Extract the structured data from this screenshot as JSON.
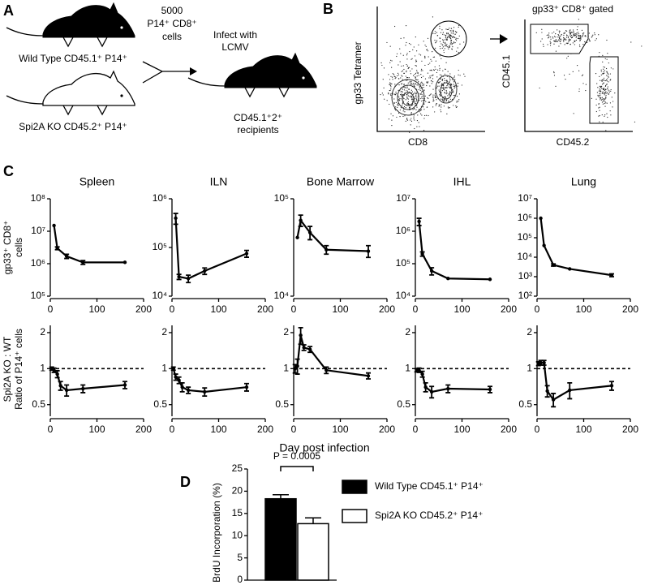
{
  "panel_a": {
    "label": "A",
    "mouse_1": "Wild Type CD45.1⁺ P14⁺",
    "mouse_2": "Spi2A KO CD45.2⁺ P14⁺",
    "transfer": [
      "5000",
      "P14⁺ CD8⁺",
      "cells"
    ],
    "infect": [
      "Infect with",
      "LCMV"
    ],
    "recipients": [
      "CD45.1⁺2⁺",
      "recipients"
    ]
  },
  "panel_b": {
    "label": "B",
    "plot_1_y": "gp33 Tetramer",
    "plot_1_x": "CD8",
    "plot_2_title": "gp33⁺ CD8⁺ gated",
    "plot_2_y": "CD45.1",
    "plot_2_x": "CD45.2"
  },
  "panel_c": {
    "label": "C",
    "y_label_top": [
      "gp33⁺ CD8⁺",
      "cells"
    ],
    "y_label_bottom": [
      "Spi2A KO : WT",
      "Ratio of P14⁺ cells"
    ],
    "x_label": "Day post infection"
  },
  "panel_d": {
    "label": "D"
  },
  "chart_data": [
    {
      "type": "line",
      "title": "Spleen",
      "log_y": true,
      "x": [
        8,
        15,
        35,
        70,
        160
      ],
      "values": [
        15000000,
        3000000,
        1700000,
        1100000,
        1100000
      ],
      "errors": [
        0,
        300000,
        250000,
        150000,
        0
      ],
      "xlim": [
        0,
        200
      ],
      "xticks": [
        0,
        100,
        200
      ],
      "ylim": [
        100000,
        100000000
      ],
      "yticks": [
        {
          "value": 100000,
          "label": "10⁵"
        },
        {
          "value": 1000000,
          "label": "10⁶"
        },
        {
          "value": 10000000,
          "label": "10⁷"
        },
        {
          "value": 100000000,
          "label": "10⁸"
        }
      ]
    },
    {
      "type": "line",
      "title": "ILN",
      "log_y": true,
      "x": [
        8,
        15,
        35,
        70,
        160
      ],
      "values": [
        400000,
        25000,
        23000,
        33000,
        75000
      ],
      "errors": [
        100000,
        3000,
        4000,
        5000,
        12000
      ],
      "xlim": [
        0,
        200
      ],
      "xticks": [
        0,
        100,
        200
      ],
      "ylim": [
        10000,
        1000000
      ],
      "yticks": [
        {
          "value": 10000,
          "label": "10⁴"
        },
        {
          "value": 100000,
          "label": "10⁵"
        },
        {
          "value": 1000000,
          "label": "10⁶"
        }
      ]
    },
    {
      "type": "line",
      "title": "Bone Marrow",
      "log_y": true,
      "x": [
        8,
        15,
        35,
        70,
        160
      ],
      "values": [
        40000,
        60000,
        45000,
        30000,
        29000
      ],
      "errors": [
        0,
        8000,
        7000,
        3000,
        4000
      ],
      "xlim": [
        0,
        200
      ],
      "xticks": [
        0,
        100,
        200
      ],
      "ylim": [
        10000,
        100000
      ],
      "yticks": [
        {
          "value": 10000,
          "label": "10⁴"
        },
        {
          "value": 100000,
          "label": "10⁵"
        }
      ]
    },
    {
      "type": "line",
      "title": "IHL",
      "log_y": true,
      "x": [
        8,
        15,
        35,
        70,
        160
      ],
      "values": [
        2000000,
        200000,
        60000,
        35000,
        33000
      ],
      "errors": [
        500000,
        30000,
        15000,
        0,
        0
      ],
      "xlim": [
        0,
        200
      ],
      "xticks": [
        0,
        100,
        200
      ],
      "ylim": [
        10000,
        10000000
      ],
      "yticks": [
        {
          "value": 10000,
          "label": "10⁴"
        },
        {
          "value": 100000,
          "label": "10⁵"
        },
        {
          "value": 1000000,
          "label": "10⁶"
        },
        {
          "value": 10000000,
          "label": "10⁷"
        }
      ]
    },
    {
      "type": "line",
      "title": "Lung",
      "log_y": true,
      "x": [
        8,
        15,
        35,
        70,
        160
      ],
      "values": [
        1000000,
        40000,
        4000,
        2500,
        1200
      ],
      "errors": [
        0,
        0,
        500,
        0,
        200
      ],
      "xlim": [
        0,
        200
      ],
      "xticks": [
        0,
        100,
        200
      ],
      "ylim": [
        100,
        10000000
      ],
      "yticks": [
        {
          "value": 100,
          "label": "10²"
        },
        {
          "value": 1000,
          "label": "10³"
        },
        {
          "value": 10000,
          "label": "10⁴"
        },
        {
          "value": 100000,
          "label": "10⁵"
        },
        {
          "value": 1000000,
          "label": "10⁶"
        },
        {
          "value": 10000000,
          "label": "10⁷"
        }
      ]
    },
    {
      "type": "line",
      "log_y": true,
      "ref_line": 1,
      "x": [
        3,
        8,
        15,
        22,
        35,
        70,
        160
      ],
      "values": [
        1.0,
        0.97,
        0.9,
        0.72,
        0.66,
        0.68,
        0.73
      ],
      "errors": [
        0.03,
        0.04,
        0.06,
        0.06,
        0.07,
        0.05,
        0.05
      ],
      "xlim": [
        0,
        200
      ],
      "xticks": [
        0,
        100,
        200
      ],
      "ylim": [
        0.4,
        2.3
      ],
      "yticks": [
        0.5,
        1,
        2
      ]
    },
    {
      "type": "line",
      "log_y": true,
      "ref_line": 1,
      "x": [
        3,
        8,
        15,
        22,
        35,
        70,
        160
      ],
      "values": [
        1.0,
        0.85,
        0.8,
        0.7,
        0.66,
        0.64,
        0.7
      ],
      "errors": [
        0.03,
        0.05,
        0.05,
        0.06,
        0.04,
        0.05,
        0.05
      ],
      "xlim": [
        0,
        200
      ],
      "xticks": [
        0,
        100,
        200
      ],
      "ylim": [
        0.4,
        2.3
      ],
      "yticks": [
        0.5,
        1,
        2
      ]
    },
    {
      "type": "line",
      "log_y": true,
      "ref_line": 1,
      "x": [
        3,
        8,
        15,
        22,
        35,
        70,
        160
      ],
      "values": [
        1.0,
        1.05,
        1.9,
        1.5,
        1.45,
        0.97,
        0.87
      ],
      "errors": [
        0.08,
        0.15,
        0.3,
        0.08,
        0.08,
        0.06,
        0.05
      ],
      "xlim": [
        0,
        200
      ],
      "xticks": [
        0,
        100,
        200
      ],
      "ylim": [
        0.4,
        2.3
      ],
      "yticks": [
        0.5,
        1,
        2
      ]
    },
    {
      "type": "line",
      "log_y": true,
      "ref_line": 1,
      "x": [
        3,
        8,
        15,
        22,
        35,
        70,
        160
      ],
      "values": [
        0.97,
        0.97,
        0.9,
        0.7,
        0.64,
        0.68,
        0.67
      ],
      "errors": [
        0.03,
        0.04,
        0.05,
        0.06,
        0.07,
        0.05,
        0.04
      ],
      "xlim": [
        0,
        200
      ],
      "xticks": [
        0,
        100,
        200
      ],
      "ylim": [
        0.4,
        2.3
      ],
      "yticks": [
        0.5,
        1,
        2
      ]
    },
    {
      "type": "line",
      "log_y": true,
      "ref_line": 1,
      "x": [
        3,
        8,
        15,
        22,
        35,
        70,
        160
      ],
      "values": [
        1.1,
        1.12,
        1.12,
        0.65,
        0.55,
        0.66,
        0.72
      ],
      "errors": [
        0.04,
        0.05,
        0.05,
        0.07,
        0.07,
        0.1,
        0.06
      ],
      "xlim": [
        0,
        200
      ],
      "xticks": [
        0,
        100,
        200
      ],
      "ylim": [
        0.4,
        2.3
      ],
      "yticks": [
        0.5,
        1,
        2
      ]
    },
    {
      "type": "bar",
      "ylabel": "BrdU Incorporation (%)",
      "annotation": "P = 0.0005",
      "series": [
        {
          "name": "Wild Type CD45.1⁺ P14⁺",
          "color": "#000000",
          "values": [
            18.3
          ],
          "errors": [
            0.9
          ]
        },
        {
          "name": "Spi2A KO CD45.2⁺ P14⁺",
          "color": "#ffffff",
          "values": [
            12.7
          ],
          "errors": [
            1.3
          ]
        }
      ],
      "ylim": [
        0,
        25
      ],
      "yticks": [
        0,
        5,
        10,
        15,
        20,
        25
      ]
    }
  ]
}
